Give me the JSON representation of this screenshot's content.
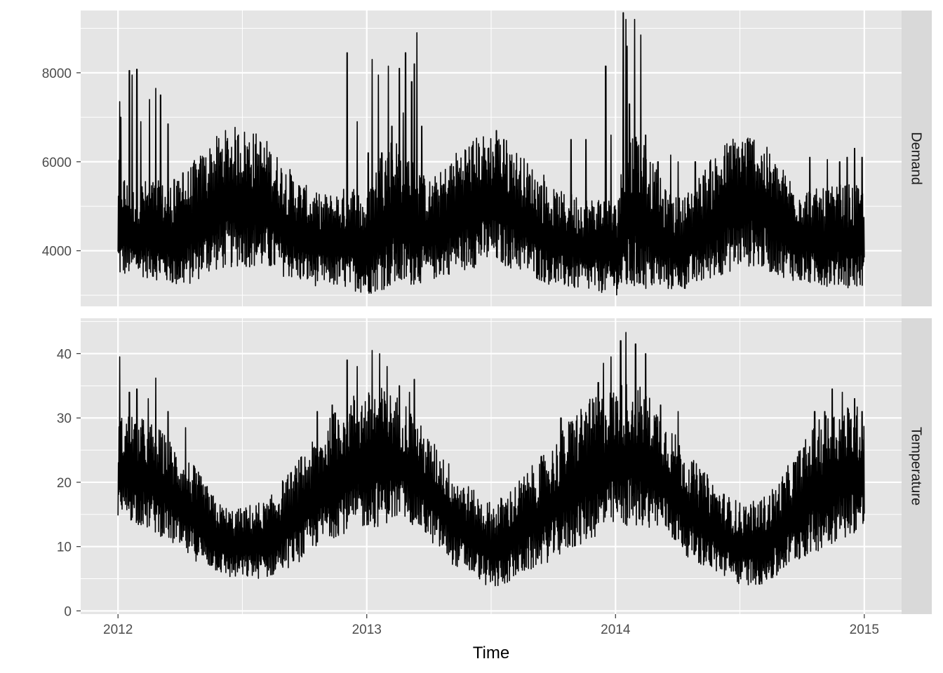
{
  "chart_data": {
    "type": "line",
    "xlabel": "Time",
    "x_range": [
      2012.0,
      2015.0
    ],
    "x_ticks": [
      "2012",
      "2013",
      "2014",
      "2015"
    ],
    "colors": {
      "panel": "#e5e5e5",
      "strip": "#d9d9d9",
      "grid_major": "#ffffff",
      "line": "#000000",
      "text": "#4d4d4d"
    },
    "facets": [
      {
        "strip_label": "Demand",
        "ylim": [
          2750,
          9400
        ],
        "y_ticks": [
          "4000",
          "6000",
          "8000"
        ],
        "y_tick_values": [
          4000,
          6000,
          8000
        ],
        "profile": {
          "x": [
            2012.0,
            2012.05,
            2012.1,
            2012.15,
            2012.2,
            2012.25,
            2012.3,
            2012.35,
            2012.4,
            2012.45,
            2012.5,
            2012.55,
            2012.6,
            2012.65,
            2012.7,
            2012.75,
            2012.8,
            2012.85,
            2012.9,
            2012.95,
            2013.0,
            2013.05,
            2013.1,
            2013.15,
            2013.2,
            2013.25,
            2013.3,
            2013.35,
            2013.4,
            2013.45,
            2013.5,
            2013.55,
            2013.6,
            2013.65,
            2013.7,
            2013.75,
            2013.8,
            2013.85,
            2013.9,
            2013.95,
            2014.0,
            2014.05,
            2014.1,
            2014.15,
            2014.2,
            2014.25,
            2014.3,
            2014.35,
            2014.4,
            2014.45,
            2014.5,
            2014.55,
            2014.6,
            2014.65,
            2014.7,
            2014.75,
            2014.8,
            2014.85,
            2014.9,
            2014.95,
            2015.0
          ],
          "low": [
            3350,
            3450,
            3400,
            3350,
            3250,
            3150,
            3250,
            3450,
            3550,
            3600,
            3650,
            3600,
            3550,
            3450,
            3350,
            3250,
            3200,
            3200,
            3150,
            3100,
            3000,
            3100,
            3150,
            3150,
            3250,
            3300,
            3400,
            3500,
            3550,
            3650,
            3700,
            3650,
            3550,
            3450,
            3300,
            3200,
            3150,
            3100,
            3050,
            3050,
            3000,
            3050,
            3100,
            3100,
            3100,
            3100,
            3150,
            3250,
            3400,
            3500,
            3600,
            3650,
            3550,
            3450,
            3350,
            3250,
            3200,
            3200,
            3200,
            3150,
            3150
          ],
          "high": [
            6100,
            5400,
            5600,
            5600,
            5500,
            5600,
            6000,
            6300,
            6600,
            6800,
            6800,
            6700,
            6500,
            6100,
            5800,
            5500,
            5300,
            5300,
            5400,
            5500,
            5200,
            6200,
            6600,
            6500,
            5900,
            5600,
            5800,
            6200,
            6500,
            6600,
            6700,
            6600,
            6300,
            6000,
            5700,
            5400,
            5300,
            5300,
            5200,
            5300,
            5100,
            6700,
            6800,
            6000,
            5400,
            5200,
            5400,
            5800,
            6200,
            6500,
            6700,
            6700,
            6400,
            6000,
            5700,
            5500,
            5400,
            5400,
            5500,
            5500,
            5400
          ]
        },
        "spikes": [
          [
            2012.005,
            7350
          ],
          [
            2012.01,
            7000
          ],
          [
            2012.045,
            8050
          ],
          [
            2012.055,
            7950
          ],
          [
            2012.075,
            8080
          ],
          [
            2012.09,
            6900
          ],
          [
            2012.125,
            7400
          ],
          [
            2012.15,
            7650
          ],
          [
            2012.17,
            7500
          ],
          [
            2012.2,
            6850
          ],
          [
            2012.225,
            5600
          ],
          [
            2012.26,
            5750
          ],
          [
            2012.92,
            8450
          ],
          [
            2012.96,
            6900
          ],
          [
            2013.005,
            6200
          ],
          [
            2013.02,
            8300
          ],
          [
            2013.045,
            7950
          ],
          [
            2013.06,
            6200
          ],
          [
            2013.085,
            8150
          ],
          [
            2013.1,
            6800
          ],
          [
            2013.13,
            8100
          ],
          [
            2013.145,
            7100
          ],
          [
            2013.155,
            8450
          ],
          [
            2013.18,
            7800
          ],
          [
            2013.19,
            8200
          ],
          [
            2013.2,
            8900
          ],
          [
            2013.22,
            6800
          ],
          [
            2013.52,
            6700
          ],
          [
            2013.55,
            6500
          ],
          [
            2013.71,
            5700
          ],
          [
            2013.82,
            6500
          ],
          [
            2013.88,
            6500
          ],
          [
            2013.96,
            8150
          ],
          [
            2013.98,
            6600
          ],
          [
            2014.03,
            9350
          ],
          [
            2014.04,
            9200
          ],
          [
            2014.045,
            8600
          ],
          [
            2014.055,
            7300
          ],
          [
            2014.075,
            9200
          ],
          [
            2014.1,
            8850
          ],
          [
            2014.12,
            6600
          ],
          [
            2014.17,
            6000
          ],
          [
            2014.22,
            6150
          ],
          [
            2014.25,
            6000
          ],
          [
            2014.32,
            6000
          ],
          [
            2014.38,
            6000
          ],
          [
            2014.78,
            6100
          ],
          [
            2014.85,
            6050
          ],
          [
            2014.9,
            6000
          ],
          [
            2014.93,
            6100
          ],
          [
            2014.96,
            6300
          ],
          [
            2014.99,
            6100
          ]
        ]
      },
      {
        "strip_label": "Temperature",
        "ylim": [
          -0.5,
          45.5
        ],
        "y_ticks": [
          "0",
          "10",
          "20",
          "30",
          "40"
        ],
        "y_tick_values": [
          0,
          10,
          20,
          30,
          40
        ],
        "profile": {
          "x": [
            2012.0,
            2012.05,
            2012.1,
            2012.15,
            2012.2,
            2012.25,
            2012.3,
            2012.35,
            2012.4,
            2012.45,
            2012.5,
            2012.55,
            2012.6,
            2012.65,
            2012.7,
            2012.75,
            2012.8,
            2012.85,
            2012.9,
            2012.95,
            2013.0,
            2013.05,
            2013.1,
            2013.15,
            2013.2,
            2013.25,
            2013.3,
            2013.35,
            2013.4,
            2013.45,
            2013.5,
            2013.55,
            2013.6,
            2013.65,
            2013.7,
            2013.75,
            2013.8,
            2013.85,
            2013.9,
            2013.95,
            2014.0,
            2014.05,
            2014.1,
            2014.15,
            2014.2,
            2014.25,
            2014.3,
            2014.35,
            2014.4,
            2014.45,
            2014.5,
            2014.55,
            2014.6,
            2014.65,
            2014.7,
            2014.75,
            2014.8,
            2014.85,
            2014.9,
            2014.95,
            2015.0
          ],
          "low": [
            14,
            14,
            13,
            12,
            11,
            9,
            8,
            7,
            6,
            5,
            5,
            5,
            5,
            6,
            7,
            8,
            10,
            11,
            12,
            12,
            13,
            13,
            14,
            14,
            13,
            11,
            9,
            7,
            6,
            5,
            3,
            4,
            5,
            6,
            7,
            8,
            9,
            10,
            11,
            12,
            13,
            13,
            13,
            13,
            12,
            10,
            8,
            7,
            6,
            5,
            4,
            4,
            4,
            5,
            7,
            8,
            9,
            10,
            11,
            12,
            12
          ],
          "high": [
            30,
            31,
            30,
            29,
            27,
            25,
            23,
            20,
            17,
            16,
            16,
            17,
            17,
            20,
            22,
            25,
            27,
            30,
            33,
            34,
            34,
            35,
            34,
            33,
            30,
            27,
            25,
            22,
            20,
            18,
            17,
            18,
            20,
            22,
            24,
            26,
            29,
            32,
            33,
            34,
            35,
            36,
            35,
            33,
            30,
            27,
            24,
            22,
            20,
            18,
            17,
            17,
            18,
            20,
            23,
            26,
            29,
            31,
            32,
            32,
            32
          ]
        },
        "spikes": [
          [
            2012.005,
            39.5
          ],
          [
            2012.045,
            34
          ],
          [
            2012.075,
            34.5
          ],
          [
            2012.12,
            33
          ],
          [
            2012.15,
            36.2
          ],
          [
            2012.2,
            31
          ],
          [
            2012.27,
            28.5
          ],
          [
            2012.8,
            31
          ],
          [
            2012.86,
            32
          ],
          [
            2012.92,
            39
          ],
          [
            2012.96,
            38
          ],
          [
            2013.02,
            40.5
          ],
          [
            2013.05,
            40
          ],
          [
            2013.08,
            38
          ],
          [
            2013.13,
            35
          ],
          [
            2013.17,
            34
          ],
          [
            2013.19,
            36
          ],
          [
            2013.7,
            24
          ],
          [
            2013.78,
            30
          ],
          [
            2013.86,
            31
          ],
          [
            2013.93,
            35.5
          ],
          [
            2013.95,
            38.5
          ],
          [
            2013.98,
            39.5
          ],
          [
            2014.02,
            42
          ],
          [
            2014.04,
            43.3
          ],
          [
            2014.08,
            41.5
          ],
          [
            2014.12,
            40
          ],
          [
            2014.18,
            32
          ],
          [
            2014.25,
            31
          ],
          [
            2014.8,
            31
          ],
          [
            2014.84,
            31
          ],
          [
            2014.87,
            34.5
          ],
          [
            2014.91,
            34
          ],
          [
            2014.96,
            33
          ],
          [
            2014.99,
            31
          ]
        ]
      }
    ]
  }
}
